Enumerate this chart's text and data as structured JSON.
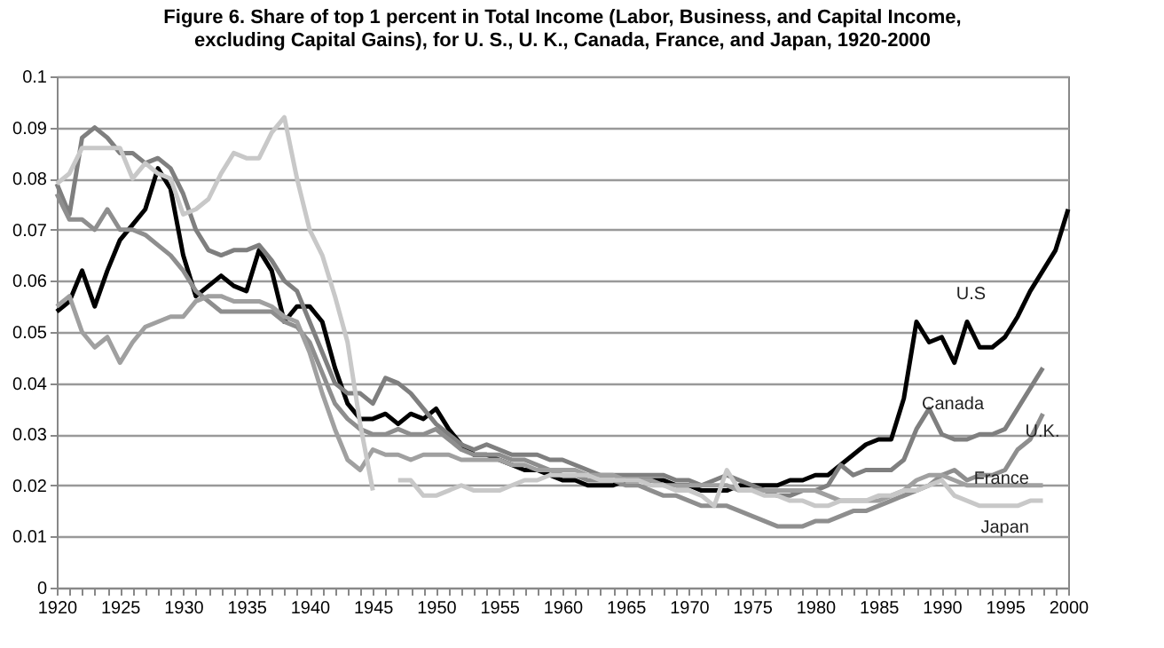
{
  "chart_data": {
    "type": "line",
    "title": "Figure 6. Share of top 1 percent in Total Income (Labor, Business, and Capital Income, excluding Capital Gains), for U. S., U. K., Canada, France, and Japan, 1920-2000",
    "x": [
      1920,
      1921,
      1922,
      1923,
      1924,
      1925,
      1926,
      1927,
      1928,
      1929,
      1930,
      1931,
      1932,
      1933,
      1934,
      1935,
      1936,
      1937,
      1938,
      1939,
      1940,
      1941,
      1942,
      1943,
      1944,
      1945,
      1946,
      1947,
      1948,
      1949,
      1950,
      1951,
      1952,
      1953,
      1954,
      1955,
      1956,
      1957,
      1958,
      1959,
      1960,
      1961,
      1962,
      1963,
      1964,
      1965,
      1966,
      1967,
      1968,
      1969,
      1970,
      1971,
      1972,
      1973,
      1974,
      1975,
      1976,
      1977,
      1978,
      1979,
      1980,
      1981,
      1982,
      1983,
      1984,
      1985,
      1986,
      1987,
      1988,
      1989,
      1990,
      1991,
      1992,
      1993,
      1994,
      1995,
      1996,
      1997,
      1998,
      1999,
      2000
    ],
    "series": [
      {
        "name": "U.S",
        "color": "#000000",
        "values": [
          0.054,
          0.056,
          0.062,
          0.055,
          0.062,
          0.068,
          0.071,
          0.074,
          0.082,
          0.078,
          0.065,
          0.057,
          0.059,
          0.061,
          0.059,
          0.058,
          0.066,
          0.062,
          0.052,
          0.055,
          0.055,
          0.052,
          0.043,
          0.036,
          0.033,
          0.033,
          0.034,
          0.032,
          0.034,
          0.033,
          0.035,
          0.031,
          0.028,
          0.026,
          0.026,
          0.025,
          0.024,
          0.023,
          0.023,
          0.022,
          0.021,
          0.021,
          0.02,
          0.02,
          0.02,
          0.021,
          0.021,
          0.021,
          0.021,
          0.02,
          0.02,
          0.019,
          0.019,
          0.019,
          0.02,
          0.02,
          0.02,
          0.02,
          0.021,
          0.021,
          0.022,
          0.022,
          0.024,
          0.026,
          0.028,
          0.029,
          0.029,
          0.037,
          0.052,
          0.048,
          0.049,
          0.044,
          0.052,
          0.047,
          0.047,
          0.049,
          0.053,
          0.058,
          0.062,
          0.066,
          0.074
        ]
      },
      {
        "name": "Canada",
        "color": "#7f7f7f",
        "values": [
          0.079,
          0.073,
          0.088,
          0.09,
          0.088,
          0.085,
          0.085,
          0.083,
          0.084,
          0.082,
          0.077,
          0.07,
          0.066,
          0.065,
          0.066,
          0.066,
          0.067,
          0.064,
          0.06,
          0.058,
          0.052,
          0.046,
          0.04,
          0.038,
          0.038,
          0.036,
          0.041,
          0.04,
          0.038,
          0.035,
          0.032,
          0.03,
          0.028,
          0.027,
          0.028,
          0.027,
          0.026,
          0.026,
          0.026,
          0.025,
          0.025,
          0.024,
          0.023,
          0.022,
          0.022,
          0.022,
          0.022,
          0.022,
          0.022,
          0.021,
          0.021,
          0.02,
          0.021,
          0.022,
          0.021,
          0.02,
          0.019,
          0.018,
          0.018,
          0.019,
          0.019,
          0.02,
          0.024,
          0.022,
          0.023,
          0.023,
          0.023,
          0.025,
          0.031,
          0.035,
          0.03,
          0.029,
          0.029,
          0.03,
          0.03,
          0.031,
          0.035,
          0.039,
          0.043,
          null,
          null
        ]
      },
      {
        "name": "U.K.",
        "color": "#8e8e8e",
        "values": [
          0.077,
          0.072,
          0.072,
          0.07,
          0.074,
          0.07,
          0.07,
          0.069,
          0.067,
          0.065,
          0.062,
          0.058,
          0.056,
          0.054,
          0.054,
          0.054,
          0.054,
          0.054,
          0.052,
          0.051,
          0.048,
          0.042,
          0.036,
          0.033,
          0.031,
          0.03,
          0.03,
          0.031,
          0.03,
          0.03,
          0.031,
          0.029,
          0.027,
          0.026,
          0.026,
          0.026,
          0.025,
          0.025,
          0.024,
          0.023,
          0.022,
          0.022,
          0.021,
          0.021,
          0.021,
          0.02,
          0.02,
          0.019,
          0.018,
          0.018,
          0.017,
          0.016,
          0.016,
          0.016,
          0.015,
          0.014,
          0.013,
          0.012,
          0.012,
          0.012,
          0.013,
          0.013,
          0.014,
          0.015,
          0.015,
          0.016,
          0.017,
          0.018,
          0.019,
          0.02,
          0.022,
          0.023,
          0.021,
          0.022,
          0.022,
          0.023,
          0.027,
          0.029,
          0.034,
          null,
          null
        ]
      },
      {
        "name": "France",
        "color": "#a0a0a0",
        "values": [
          0.055,
          0.057,
          0.05,
          0.047,
          0.049,
          0.044,
          0.048,
          0.051,
          0.052,
          0.053,
          0.053,
          0.056,
          0.057,
          0.057,
          0.056,
          0.056,
          0.056,
          0.055,
          0.053,
          0.052,
          0.046,
          0.038,
          0.031,
          0.025,
          0.023,
          0.027,
          0.026,
          0.026,
          0.025,
          0.026,
          0.026,
          0.026,
          0.025,
          0.025,
          0.025,
          0.025,
          0.024,
          0.024,
          0.023,
          0.023,
          0.023,
          0.023,
          0.022,
          0.022,
          0.022,
          0.021,
          0.021,
          0.021,
          0.02,
          0.02,
          0.02,
          0.02,
          0.02,
          0.02,
          0.019,
          0.019,
          0.019,
          0.019,
          0.019,
          0.019,
          0.019,
          0.018,
          0.017,
          0.017,
          0.017,
          0.017,
          0.018,
          0.019,
          0.021,
          0.022,
          0.022,
          0.021,
          0.02,
          0.02,
          0.02,
          0.02,
          0.02,
          0.02,
          0.02,
          null,
          null
        ]
      },
      {
        "name": "Japan",
        "color": "#c8c8c8",
        "values": [
          0.079,
          0.081,
          0.086,
          0.086,
          0.086,
          0.086,
          0.08,
          0.083,
          0.081,
          0.08,
          0.073,
          0.074,
          0.076,
          0.081,
          0.085,
          0.084,
          0.084,
          0.089,
          0.092,
          0.08,
          0.07,
          0.065,
          0.057,
          0.048,
          0.032,
          0.019,
          null,
          0.021,
          0.021,
          0.018,
          0.018,
          0.019,
          0.02,
          0.019,
          0.019,
          0.019,
          0.02,
          0.021,
          0.021,
          0.022,
          0.022,
          0.022,
          0.022,
          0.021,
          0.021,
          0.021,
          0.021,
          0.02,
          0.02,
          0.019,
          0.019,
          0.018,
          0.016,
          0.023,
          0.019,
          0.019,
          0.018,
          0.018,
          0.017,
          0.017,
          0.016,
          0.016,
          0.017,
          0.017,
          0.017,
          0.018,
          0.018,
          0.019,
          0.019,
          0.02,
          0.021,
          0.018,
          0.017,
          0.016,
          0.016,
          0.016,
          0.016,
          0.017,
          0.017,
          null,
          null
        ]
      }
    ],
    "xlim": [
      1920,
      2000
    ],
    "xticks": [
      1920,
      {
        "value": 1921,
        "label": null
      },
      {
        "value": 1922,
        "label": null
      },
      {
        "value": 1923,
        "label": null
      },
      {
        "value": 1924,
        "label": null
      },
      1925,
      {
        "value": 1926,
        "label": null
      },
      {
        "value": 1927,
        "label": null
      },
      {
        "value": 1928,
        "label": null
      },
      {
        "value": 1929,
        "label": null
      },
      1930,
      {
        "value": 1931,
        "label": null
      },
      {
        "value": 1932,
        "label": null
      },
      {
        "value": 1933,
        "label": null
      },
      {
        "value": 1934,
        "label": null
      },
      1935,
      {
        "value": 1936,
        "label": null
      },
      {
        "value": 1937,
        "label": null
      },
      {
        "value": 1938,
        "label": null
      },
      {
        "value": 1939,
        "label": null
      },
      1940,
      {
        "value": 1941,
        "label": null
      },
      {
        "value": 1942,
        "label": null
      },
      {
        "value": 1943,
        "label": null
      },
      {
        "value": 1944,
        "label": null
      },
      1945,
      {
        "value": 1946,
        "label": null
      },
      {
        "value": 1947,
        "label": null
      },
      {
        "value": 1948,
        "label": null
      },
      {
        "value": 1949,
        "label": null
      },
      1950,
      {
        "value": 1951,
        "label": null
      },
      {
        "value": 1952,
        "label": null
      },
      {
        "value": 1953,
        "label": null
      },
      {
        "value": 1954,
        "label": null
      },
      1955,
      {
        "value": 1956,
        "label": null
      },
      {
        "value": 1957,
        "label": null
      },
      {
        "value": 1958,
        "label": null
      },
      {
        "value": 1959,
        "label": null
      },
      1960,
      {
        "value": 1961,
        "label": null
      },
      {
        "value": 1962,
        "label": null
      },
      {
        "value": 1963,
        "label": null
      },
      {
        "value": 1964,
        "label": null
      },
      1965,
      {
        "value": 1966,
        "label": null
      },
      {
        "value": 1967,
        "label": null
      },
      {
        "value": 1968,
        "label": null
      },
      {
        "value": 1969,
        "label": null
      },
      1970,
      {
        "value": 1971,
        "label": null
      },
      {
        "value": 1972,
        "label": null
      },
      {
        "value": 1973,
        "label": null
      },
      {
        "value": 1974,
        "label": null
      },
      1975,
      {
        "value": 1976,
        "label": null
      },
      {
        "value": 1977,
        "label": null
      },
      {
        "value": 1978,
        "label": null
      },
      {
        "value": 1979,
        "label": null
      },
      1980,
      {
        "value": 1981,
        "label": null
      },
      {
        "value": 1982,
        "label": null
      },
      {
        "value": 1983,
        "label": null
      },
      {
        "value": 1984,
        "label": null
      },
      1985,
      {
        "value": 1986,
        "label": null
      },
      {
        "value": 1987,
        "label": null
      },
      {
        "value": 1988,
        "label": null
      },
      {
        "value": 1989,
        "label": null
      },
      1990,
      {
        "value": 1991,
        "label": null
      },
      {
        "value": 1992,
        "label": null
      },
      {
        "value": 1993,
        "label": null
      },
      {
        "value": 1994,
        "label": null
      },
      1995,
      {
        "value": 1996,
        "label": null
      },
      {
        "value": 1997,
        "label": null
      },
      {
        "value": 1998,
        "label": null
      },
      {
        "value": 1999,
        "label": null
      },
      2000
    ],
    "ylim": [
      0,
      0.1
    ],
    "yticks": [
      0,
      0.01,
      0.02,
      0.03,
      0.04,
      0.05,
      0.06,
      0.07,
      0.08,
      0.09,
      0.1
    ],
    "grid": "y",
    "legend": false,
    "line_style": "solid",
    "marker": "none"
  }
}
